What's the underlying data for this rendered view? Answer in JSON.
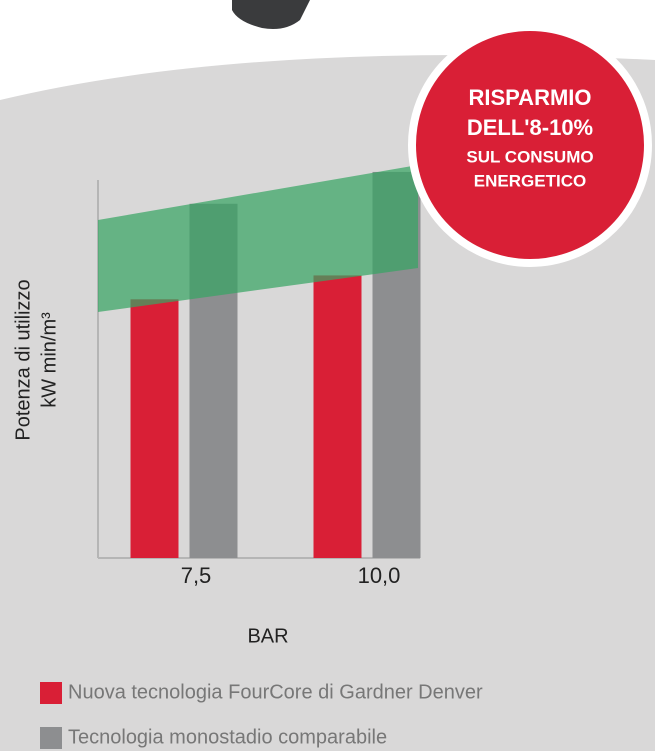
{
  "chart_data": {
    "type": "bar",
    "annotation": [
      "RISPARMIO",
      "DELL'8-10%",
      "SUL CONSUMO",
      "ENERGETICO"
    ],
    "xlabel": "BAR",
    "ylabel": [
      "Potenza di utilizzo",
      "kW min/m³"
    ],
    "categories": [
      "7,5",
      "10,0"
    ],
    "series": [
      {
        "name": "Nuova tecnologia FourCore di Gardner Denver",
        "color": "#d91f36",
        "values": [
          65,
          71
        ]
      },
      {
        "name": "Tecnologia monostadio comparabile",
        "color": "#8d8e90",
        "values": [
          89,
          97
        ]
      }
    ],
    "ylim": [
      0,
      100
    ]
  }
}
